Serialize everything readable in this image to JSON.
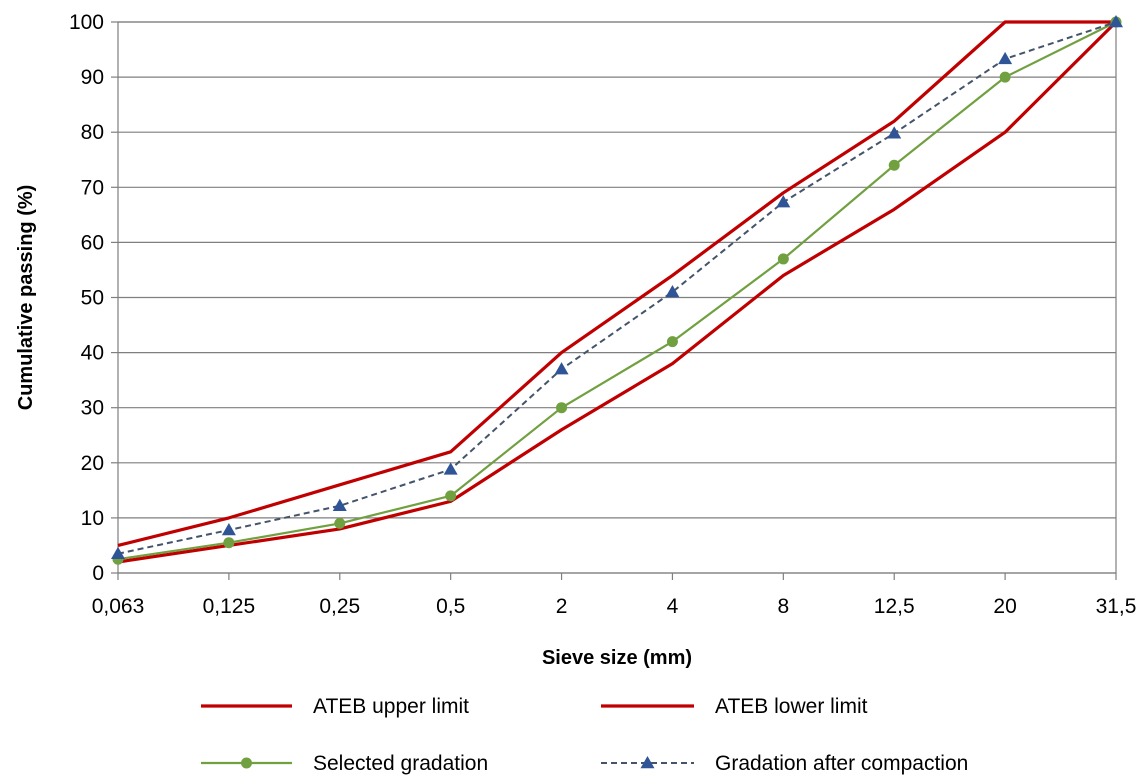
{
  "chart_data": {
    "type": "line",
    "title": "",
    "xlabel": "Sieve size (mm)",
    "ylabel": "Cumulative passing (%)",
    "categories": [
      "0,063",
      "0,125",
      "0,25",
      "0,5",
      "2",
      "4",
      "8",
      "12,5",
      "20",
      "31,5"
    ],
    "ylim": [
      0,
      100
    ],
    "yticks": [
      "0",
      "10",
      "20",
      "30",
      "40",
      "50",
      "60",
      "70",
      "80",
      "90",
      "100"
    ],
    "grid": "horizontal",
    "legend_position": "bottom",
    "series": [
      {
        "name": "ATEB upper limit",
        "color": "#C00000",
        "style": "solid",
        "marker": "none",
        "values": [
          5,
          10,
          16,
          22,
          40,
          54,
          69,
          82,
          100,
          100
        ]
      },
      {
        "name": "ATEB lower limit",
        "color": "#C00000",
        "style": "solid",
        "marker": "none",
        "values": [
          2,
          5,
          8,
          13,
          26,
          38,
          54,
          66,
          80,
          100
        ]
      },
      {
        "name": "Selected gradation",
        "color": "#70A040",
        "style": "solid",
        "marker": "circle",
        "values": [
          2.5,
          5.5,
          9,
          14,
          30,
          42,
          57,
          74,
          90,
          100
        ]
      },
      {
        "name": "Gradation after compaction",
        "color": "#44546A",
        "marker_color": "#2F5597",
        "style": "dashed",
        "marker": "triangle",
        "values": [
          3.5,
          7.8,
          12.2,
          18.8,
          37,
          51,
          67.3,
          79.8,
          93.3,
          100
        ]
      }
    ]
  }
}
